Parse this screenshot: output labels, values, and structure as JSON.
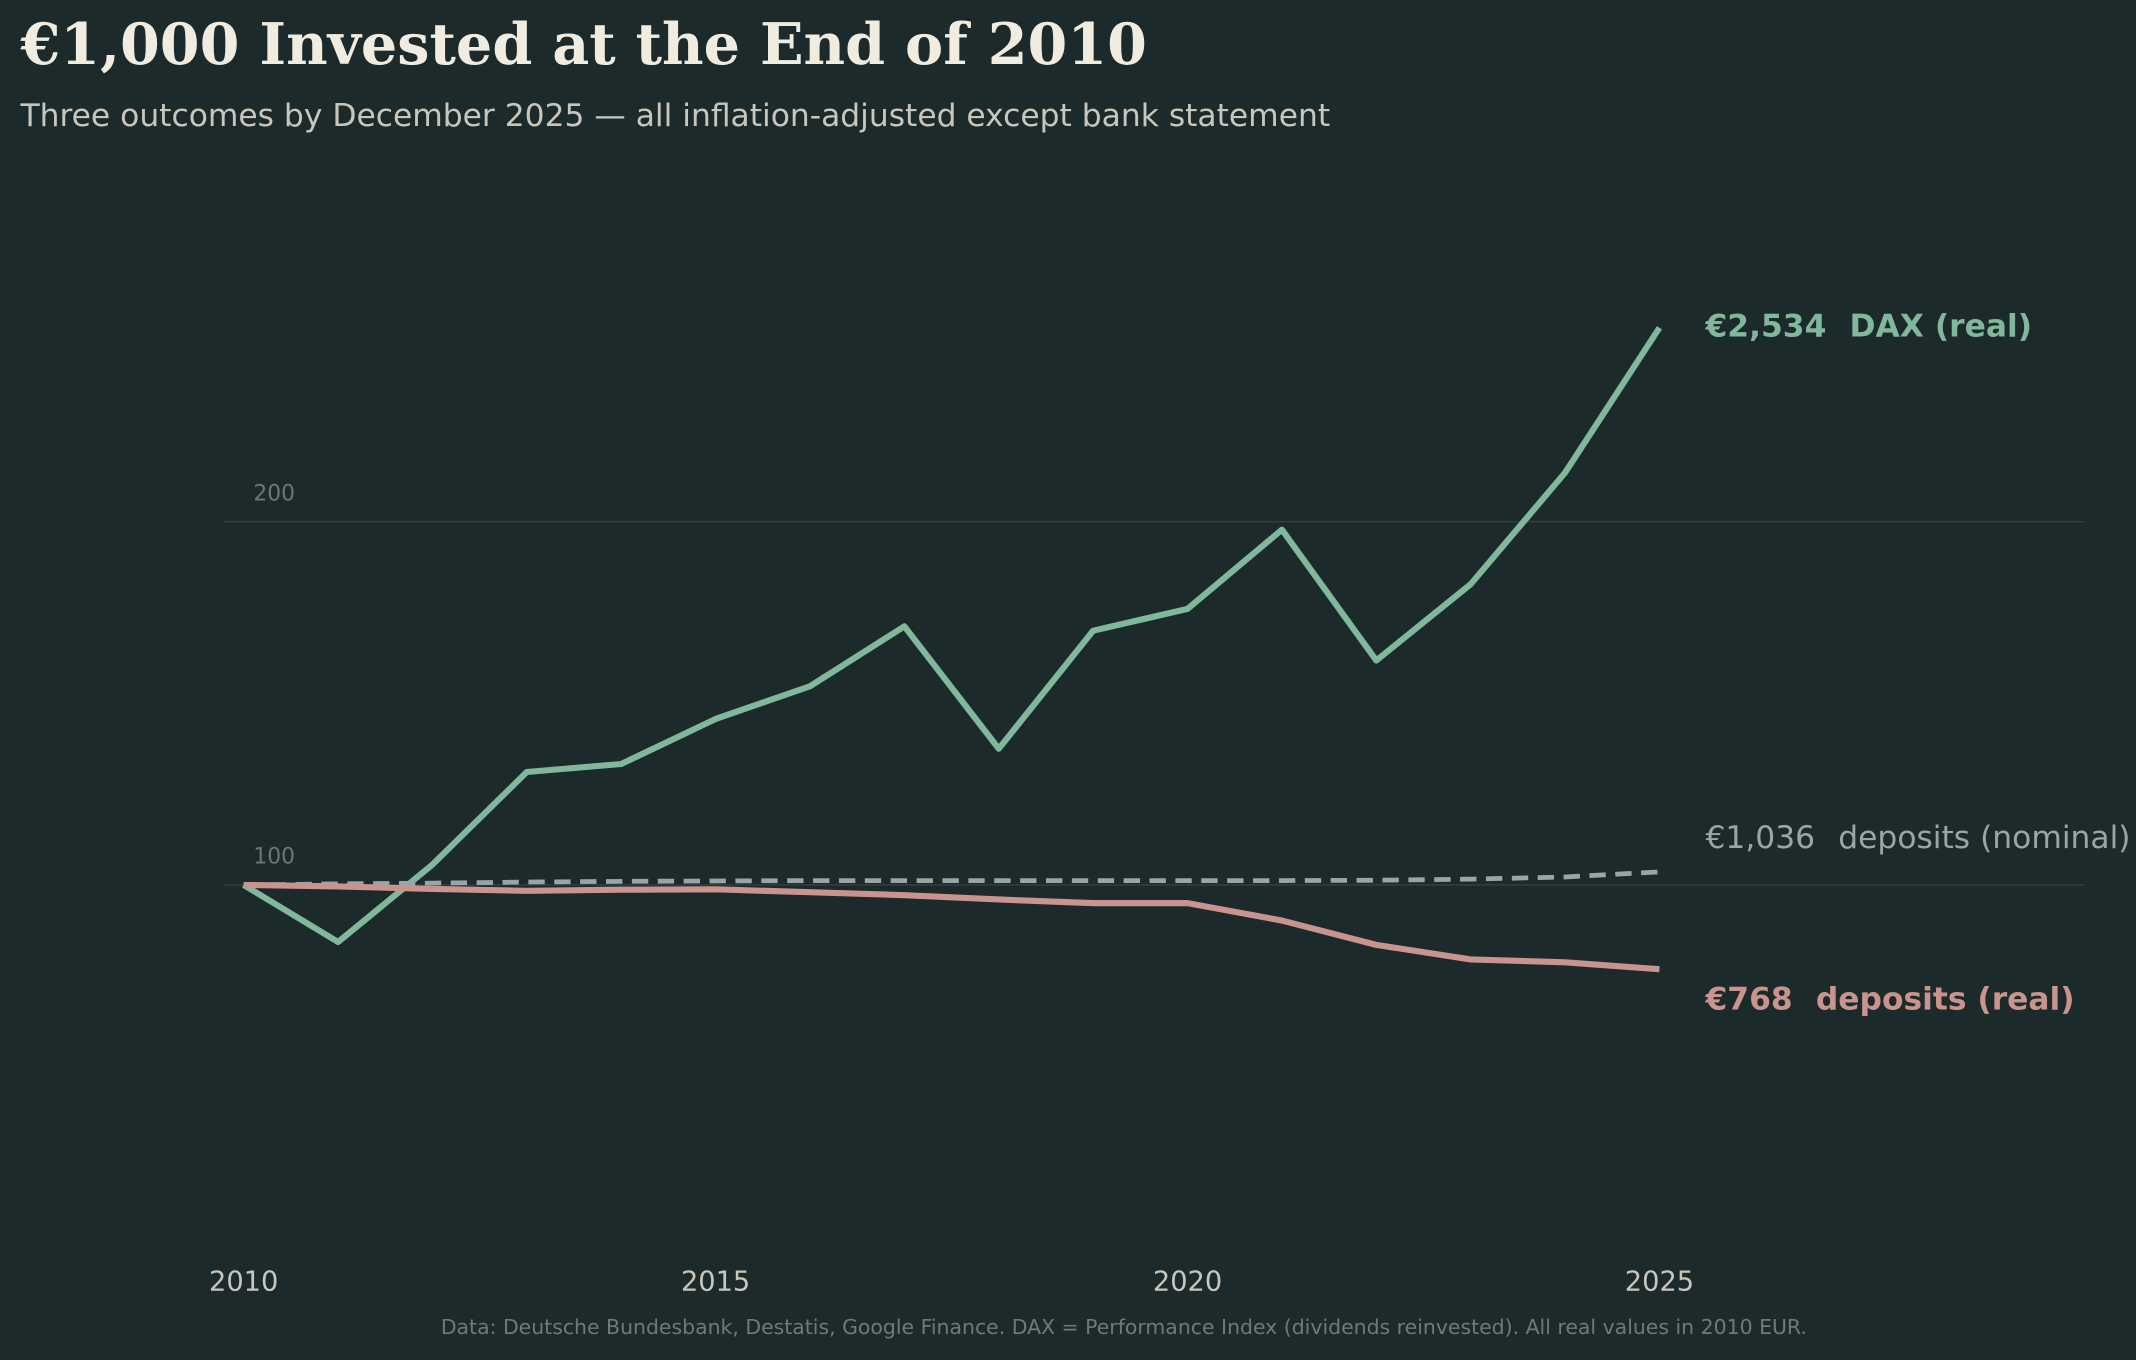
{
  "chart_data": {
    "type": "line",
    "title": "€1,000 Invested at the End of 2010",
    "subtitle": "Three outcomes by December 2025 — all inflation-adjusted except bank statement",
    "footnote": "Data: Deutsche Bundesbank, Destatis, Google Finance.  DAX = Performance Index (dividends reinvested).  All real values in 2010 EUR.",
    "x": [
      2010,
      2011,
      2012,
      2013,
      2014,
      2015,
      2016,
      2017,
      2018,
      2019,
      2020,
      2021,
      2022,
      2023,
      2024,
      2025
    ],
    "series": [
      {
        "name": "DAX (real)",
        "end_label": "€2,534",
        "color": "#7fb89a",
        "style": "solid",
        "values": [
          100,
          84.3,
          105.6,
          131.1,
          133.3,
          145.7,
          154.7,
          171.2,
          137.5,
          170.0,
          176.0,
          197.8,
          161.8,
          182.8,
          213.5,
          253.4
        ]
      },
      {
        "name": "deposits (nominal)",
        "end_label": "€1,036",
        "color": "#9aa5a8",
        "style": "dashed",
        "values": [
          100,
          100.3,
          100.5,
          100.8,
          101,
          101.1,
          101.2,
          101.2,
          101.2,
          101.2,
          101.2,
          101.2,
          101.3,
          101.6,
          102.2,
          103.6
        ]
      },
      {
        "name": "deposits (real)",
        "end_label": "€768",
        "color": "#c9938e",
        "style": "solid",
        "values": [
          100,
          99.6,
          98.9,
          98.4,
          98.7,
          98.8,
          98.0,
          97.2,
          96.0,
          95.0,
          95.0,
          90.2,
          83.5,
          79.5,
          78.7,
          76.8
        ]
      }
    ],
    "xlim": [
      2009.8,
      2029.5
    ],
    "ylim": [
      5,
      290
    ],
    "xticks": [
      2010,
      2015,
      2020,
      2025
    ],
    "yticks": [
      100,
      200
    ],
    "grid": true
  }
}
